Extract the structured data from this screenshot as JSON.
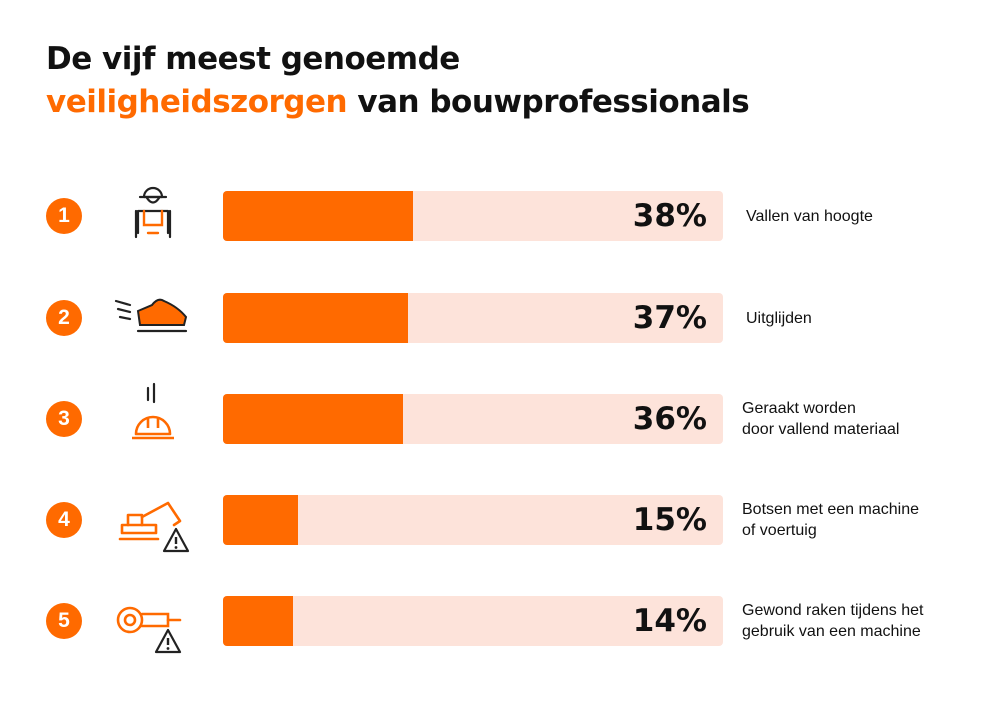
{
  "title": {
    "line1": "De vijf meest genoemde",
    "line2_accent": "veiligheidszorgen",
    "line2_rest": " van bouwprofessionals"
  },
  "colors": {
    "accent": "#ff6a00",
    "track": "#fde3da",
    "text": "#111111"
  },
  "chart_data": {
    "type": "bar",
    "orientation": "horizontal",
    "ylim": [
      0,
      100
    ],
    "categories": [
      "Vallen van hoogte",
      "Uitglijden",
      "Geraakt worden\ndoor vallend materiaal",
      "Botsen met een machine\nof voertuig",
      "Gewond raken tijdens het\ngebruik van een machine"
    ],
    "values": [
      38,
      37,
      36,
      15,
      14
    ],
    "value_labels": [
      "38%",
      "37%",
      "36%",
      "15%",
      "14%"
    ],
    "ranks": [
      "1",
      "2",
      "3",
      "4",
      "5"
    ],
    "icons": [
      "construction-worker-icon",
      "slipping-shoe-icon",
      "falling-object-helmet-icon",
      "excavator-warning-icon",
      "grinder-warning-icon"
    ]
  }
}
